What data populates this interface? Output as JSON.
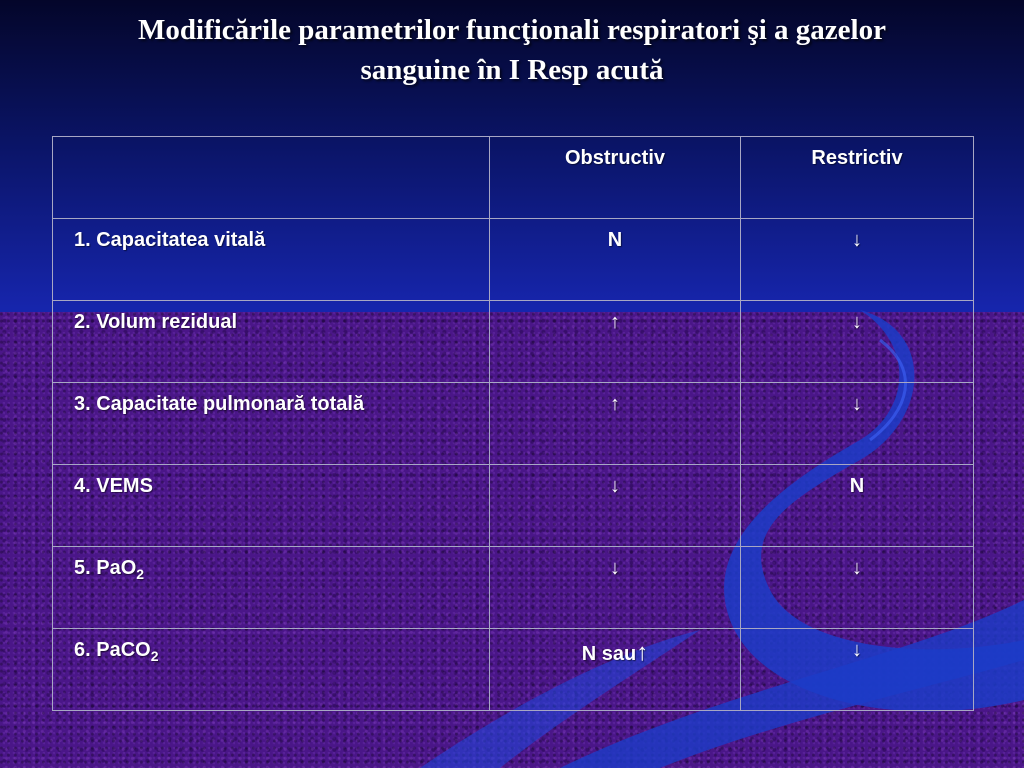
{
  "title": {
    "line1": "Modificările parametrilor funcţionali respiratori şi a gazelor",
    "line2": "sanguine în I Resp acută"
  },
  "table": {
    "headers": [
      "",
      "Obstructiv",
      "Restrictiv"
    ],
    "rows": [
      {
        "label": "1. Capacitatea vitală",
        "obstructiv": "N",
        "restrictiv": "↓"
      },
      {
        "label": "2. Volum rezidual",
        "obstructiv": "↑",
        "restrictiv": "↓"
      },
      {
        "label": "3. Capacitate pulmonară totală",
        "obstructiv": "↑",
        "restrictiv": "↓"
      },
      {
        "label": "4. VEMS",
        "obstructiv": "↓",
        "restrictiv": "N"
      },
      {
        "label_main": "5. PaO",
        "label_sub": "2",
        "obstructiv": "↓",
        "restrictiv": "↓"
      },
      {
        "label_main": "6. PaCO",
        "label_sub": "2",
        "obstructiv_text": "N sau",
        "obstructiv_arrow": "↑",
        "restrictiv": "↓"
      }
    ]
  },
  "colors": {
    "title_text": "#ffffff",
    "top_gradient": [
      "#04062a",
      "#1726b0"
    ],
    "bottom_texture": "#4a1688",
    "swoosh": "#1c3cc8",
    "grid_line": "#a7a7c4"
  }
}
